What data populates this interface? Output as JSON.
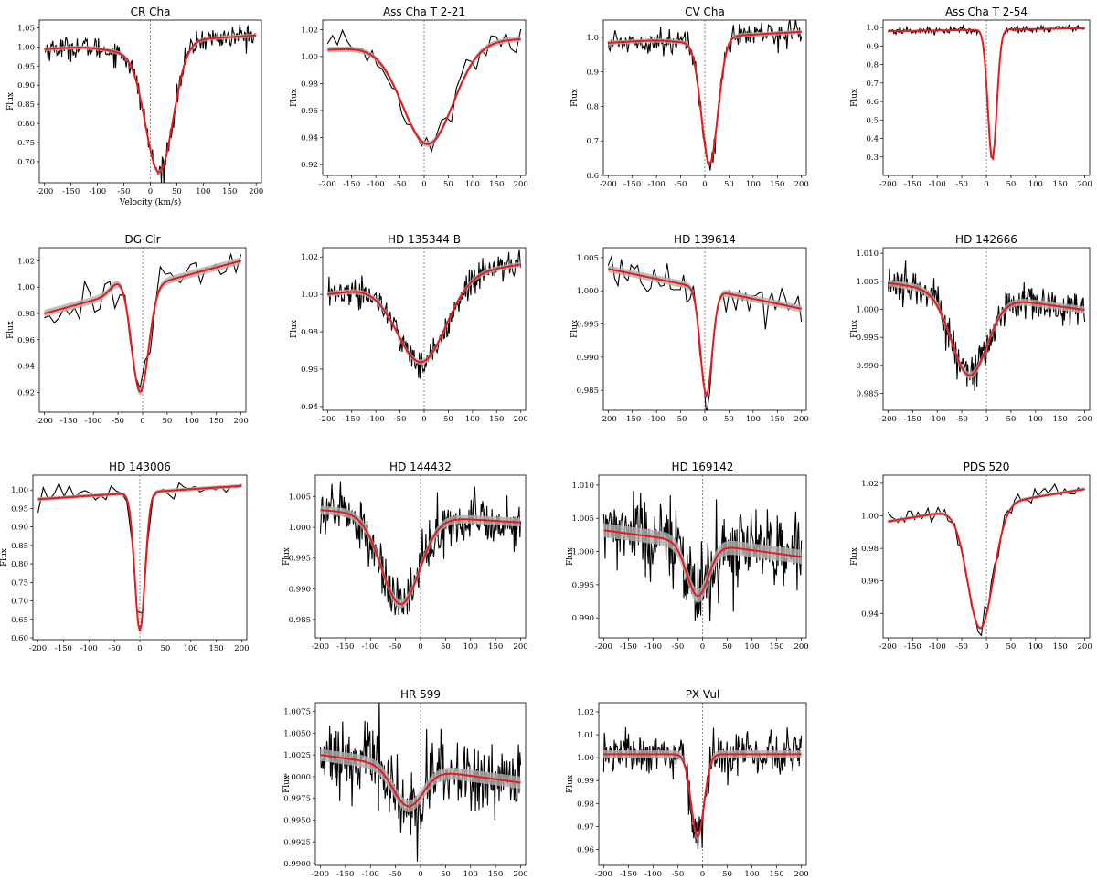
{
  "figure": {
    "colors": {
      "data": "#000000",
      "model": "#e41a1c",
      "band": "#b0b0b0",
      "zero": "#444444"
    }
  },
  "chart_data": [
    {
      "type": "line",
      "title": "CR Cha",
      "xlabel": "Velocity (km/s)",
      "ylabel": "Flux",
      "xlim": [
        -210,
        210
      ],
      "ylim": [
        0.645,
        1.07
      ],
      "xticks": [
        -200,
        -150,
        -100,
        -50,
        0,
        50,
        100,
        150,
        200
      ],
      "yticks": [
        0.7,
        0.75,
        0.8,
        0.85,
        0.9,
        0.95,
        1.0,
        1.05
      ],
      "ytick_labels": [
        "0.70",
        "0.75",
        "0.80",
        "0.85",
        "0.90",
        "0.95",
        "1.00",
        "1.05"
      ],
      "model": {
        "base": 1.012,
        "slope": 9e-05,
        "center": 17,
        "depth": 0.335,
        "width": 26,
        "wing": 0.02,
        "wing_center": -45,
        "wing_width": 40
      },
      "noise": 0.015,
      "n_points": 260
    },
    {
      "type": "line",
      "title": "Ass Cha T 2-21",
      "xlabel": "",
      "ylabel": "Flux",
      "xlim": [
        -210,
        210
      ],
      "ylim": [
        0.912,
        1.027
      ],
      "xticks": [
        -200,
        -150,
        -100,
        -50,
        0,
        50,
        100,
        150,
        200
      ],
      "yticks": [
        0.92,
        0.94,
        0.96,
        0.98,
        1.0,
        1.02
      ],
      "ytick_labels": [
        "0.92",
        "0.94",
        "0.96",
        "0.98",
        "1.00",
        "1.02"
      ],
      "model": {
        "base": 1.009,
        "slope": 2e-05,
        "center": 8,
        "depth": 0.074,
        "width": 52,
        "wing": 0,
        "wing_center": 0,
        "wing_width": 1
      },
      "noise": 0.006,
      "n_points": 40
    },
    {
      "type": "line",
      "title": "CV Cha",
      "xlabel": "",
      "ylabel": "Flux",
      "xlim": [
        -210,
        210
      ],
      "ylim": [
        0.6,
        1.05
      ],
      "xticks": [
        -200,
        -150,
        -100,
        -50,
        0,
        50,
        100,
        150,
        200
      ],
      "yticks": [
        0.6,
        0.7,
        0.8,
        0.9,
        1.0
      ],
      "ytick_labels": [
        "0.6",
        "0.7",
        "0.8",
        "0.9",
        "1.0"
      ],
      "model": {
        "base": 1.0,
        "slope": 8e-05,
        "center": 10,
        "depth": 0.365,
        "width": 17,
        "wing": 0.01,
        "wing_center": -40,
        "wing_width": 30
      },
      "noise": 0.018,
      "n_points": 200
    },
    {
      "type": "line",
      "title": "Ass Cha T 2-54",
      "xlabel": "",
      "ylabel": "Flux",
      "xlim": [
        -210,
        210
      ],
      "ylim": [
        0.2,
        1.04
      ],
      "xticks": [
        -200,
        -150,
        -100,
        -50,
        0,
        50,
        100,
        150,
        200
      ],
      "yticks": [
        0.3,
        0.4,
        0.5,
        0.6,
        0.7,
        0.8,
        0.9,
        1.0
      ],
      "ytick_labels": [
        "0.3",
        "0.4",
        "0.5",
        "0.6",
        "0.7",
        "0.8",
        "0.9",
        "1.0"
      ],
      "model": {
        "base": 0.988,
        "slope": 4e-05,
        "center": 12,
        "depth": 0.705,
        "width": 9,
        "wing": 0,
        "wing_center": 0,
        "wing_width": 1
      },
      "noise": 0.01,
      "n_points": 200
    },
    {
      "type": "line",
      "title": "DG Cir",
      "xlabel": "",
      "ylabel": "Flux",
      "xlim": [
        -210,
        210
      ],
      "ylim": [
        0.905,
        1.03
      ],
      "xticks": [
        -200,
        -150,
        -100,
        -50,
        0,
        50,
        100,
        150,
        200
      ],
      "yticks": [
        0.92,
        0.94,
        0.96,
        0.98,
        1.0,
        1.02
      ],
      "ytick_labels": [
        "0.92",
        "0.94",
        "0.96",
        "0.98",
        "1.00",
        "1.02"
      ],
      "model": {
        "base": 1.0,
        "slope": 0.0001,
        "center": -5,
        "depth": 0.08,
        "width": 17,
        "wing": -0.01,
        "wing_center": -45,
        "wing_width": 18
      },
      "noise": 0.008,
      "n_points": 40
    },
    {
      "type": "line",
      "title": "HD 135344 B",
      "xlabel": "",
      "ylabel": "Flux",
      "xlim": [
        -210,
        210
      ],
      "ylim": [
        0.938,
        1.025
      ],
      "xticks": [
        -200,
        -150,
        -100,
        -50,
        0,
        50,
        100,
        150,
        200
      ],
      "yticks": [
        0.94,
        0.96,
        0.98,
        1.0,
        1.02
      ],
      "ytick_labels": [
        "0.94",
        "0.96",
        "0.98",
        "1.00",
        "1.02"
      ],
      "model": {
        "base": 1.008,
        "slope": 4e-05,
        "center": -5,
        "depth": 0.044,
        "width": 50,
        "wing": 0,
        "wing_center": 0,
        "wing_width": 1
      },
      "noise": 0.004,
      "n_points": 260
    },
    {
      "type": "line",
      "title": "HD 139614",
      "xlabel": "",
      "ylabel": "Flux",
      "xlim": [
        -210,
        210
      ],
      "ylim": [
        0.982,
        1.0065
      ],
      "xticks": [
        -200,
        -150,
        -100,
        -50,
        0,
        50,
        100,
        150,
        200
      ],
      "yticks": [
        0.985,
        0.99,
        0.995,
        1.0,
        1.005
      ],
      "ytick_labels": [
        "0.985",
        "0.990",
        "0.995",
        "1.000",
        "1.005"
      ],
      "model": {
        "base": 1.0003,
        "slope": -1.5e-05,
        "center": 3,
        "depth": 0.016,
        "width": 12,
        "wing": 0,
        "wing_center": 0,
        "wing_width": 1
      },
      "noise": 0.0015,
      "n_points": 60
    },
    {
      "type": "line",
      "title": "HD 142666",
      "xlabel": "",
      "ylabel": "Flux",
      "xlim": [
        -210,
        210
      ],
      "ylim": [
        0.982,
        1.011
      ],
      "xticks": [
        -200,
        -150,
        -100,
        -50,
        0,
        50,
        100,
        150,
        200
      ],
      "yticks": [
        0.985,
        0.99,
        0.995,
        1.0,
        1.005,
        1.01
      ],
      "ytick_labels": [
        "0.985",
        "0.990",
        "0.995",
        "1.000",
        "1.005",
        "1.010"
      ],
      "model": {
        "base": 1.0023,
        "slope": -1.2e-05,
        "center": -35,
        "depth": 0.0145,
        "width": 36,
        "wing": 0,
        "wing_center": 0,
        "wing_width": 1
      },
      "noise": 0.0018,
      "n_points": 280
    },
    {
      "type": "line",
      "title": "HD 143006",
      "xlabel": "",
      "ylabel": "Flux",
      "xlim": [
        -210,
        210
      ],
      "ylim": [
        0.595,
        1.04
      ],
      "xticks": [
        -200,
        -150,
        -100,
        -50,
        0,
        50,
        100,
        150,
        200
      ],
      "yticks": [
        0.6,
        0.65,
        0.7,
        0.75,
        0.8,
        0.85,
        0.9,
        0.95,
        1.0
      ],
      "ytick_labels": [
        "0.60",
        "0.65",
        "0.70",
        "0.75",
        "0.80",
        "0.85",
        "0.90",
        "0.95",
        "1.00"
      ],
      "model": {
        "base": 0.993,
        "slope": 9e-05,
        "center": 0,
        "depth": 0.375,
        "width": 10,
        "wing": 0,
        "wing_center": 0,
        "wing_width": 1
      },
      "noise": 0.015,
      "n_points": 40
    },
    {
      "type": "line",
      "title": "HD 144432",
      "xlabel": "",
      "ylabel": "Flux",
      "xlim": [
        -210,
        210
      ],
      "ylim": [
        0.982,
        1.0085
      ],
      "xticks": [
        -200,
        -150,
        -100,
        -50,
        0,
        50,
        100,
        150,
        200
      ],
      "yticks": [
        0.985,
        0.99,
        0.995,
        1.0,
        1.005
      ],
      "ytick_labels": [
        "0.985",
        "0.990",
        "0.995",
        "1.000",
        "1.005"
      ],
      "model": {
        "base": 1.0018,
        "slope": -5e-06,
        "center": -40,
        "depth": 0.0145,
        "width": 38,
        "wing": 0,
        "wing_center": 0,
        "wing_width": 1
      },
      "noise": 0.002,
      "n_points": 280
    },
    {
      "type": "line",
      "title": "HD 169142",
      "xlabel": "",
      "ylabel": "Flux",
      "xlim": [
        -210,
        210
      ],
      "ylim": [
        0.987,
        1.0115
      ],
      "xticks": [
        -200,
        -150,
        -100,
        -50,
        0,
        50,
        100,
        150,
        200
      ],
      "yticks": [
        0.99,
        0.995,
        1.0,
        1.005,
        1.01
      ],
      "ytick_labels": [
        "0.990",
        "0.995",
        "1.000",
        "1.005",
        "1.010"
      ],
      "model": {
        "base": 1.0012,
        "slope": -1e-05,
        "center": -10,
        "depth": 0.008,
        "width": 22,
        "wing": 0,
        "wing_center": 0,
        "wing_width": 1
      },
      "noise": 0.003,
      "n_points": 280
    },
    {
      "type": "line",
      "title": "PDS 520",
      "xlabel": "",
      "ylabel": "Flux",
      "xlim": [
        -210,
        210
      ],
      "ylim": [
        0.925,
        1.025
      ],
      "xticks": [
        -200,
        -150,
        -100,
        -50,
        0,
        50,
        100,
        150,
        200
      ],
      "yticks": [
        0.94,
        0.96,
        0.98,
        1.0,
        1.02
      ],
      "ytick_labels": [
        "0.94",
        "0.96",
        "0.98",
        "1.00",
        "1.02"
      ],
      "model": {
        "base": 1.0065,
        "slope": 5e-05,
        "center": -12,
        "depth": 0.075,
        "width": 26,
        "wing": 0,
        "wing_center": 0,
        "wing_width": 1
      },
      "noise": 0.003,
      "n_points": 60
    },
    {
      "type": "line",
      "title": "HR 599",
      "xlabel": "",
      "ylabel": "Flux",
      "xlim": [
        -210,
        210
      ],
      "ylim": [
        0.9898,
        1.0085
      ],
      "xticks": [
        -200,
        -150,
        -100,
        -50,
        0,
        50,
        100,
        150,
        200
      ],
      "yticks": [
        0.99,
        0.9925,
        0.995,
        0.9975,
        1.0,
        1.0025,
        1.005,
        1.0075
      ],
      "ytick_labels": [
        "0.9900",
        "0.9925",
        "0.9950",
        "0.9975",
        "1.0000",
        "1.0025",
        "1.0050",
        "1.0075"
      ],
      "model": {
        "base": 1.0009,
        "slope": -8e-06,
        "center": -25,
        "depth": 0.0045,
        "width": 30,
        "wing": 0,
        "wing_center": 0,
        "wing_width": 1
      },
      "noise": 0.002,
      "n_points": 280
    },
    {
      "type": "line",
      "title": "PX Vul",
      "xlabel": "",
      "ylabel": "Flux",
      "xlim": [
        -210,
        210
      ],
      "ylim": [
        0.953,
        1.024
      ],
      "xticks": [
        -200,
        -150,
        -100,
        -50,
        0,
        50,
        100,
        150,
        200
      ],
      "yticks": [
        0.96,
        0.97,
        0.98,
        0.99,
        1.0,
        1.01,
        1.02
      ],
      "ytick_labels": [
        "0.96",
        "0.97",
        "0.98",
        "0.99",
        "1.00",
        "1.01",
        "1.02"
      ],
      "model": {
        "base": 1.0015,
        "slope": 0.0,
        "center": -10,
        "depth": 0.036,
        "width": 13,
        "wing": 0,
        "wing_center": 0,
        "wing_width": 1
      },
      "noise": 0.005,
      "n_points": 280
    }
  ]
}
